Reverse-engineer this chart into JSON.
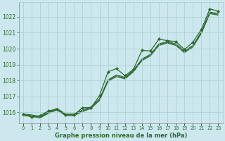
{
  "title": "Graphe pression niveau de la mer (hPa)",
  "x_labels": [
    "0",
    "1",
    "2",
    "3",
    "4",
    "5",
    "6",
    "7",
    "8",
    "9",
    "10",
    "11",
    "12",
    "13",
    "14",
    "15",
    "16",
    "17",
    "18",
    "19",
    "20",
    "21",
    "22",
    "23"
  ],
  "xlim": [
    -0.5,
    23.5
  ],
  "ylim": [
    1015.3,
    1022.9
  ],
  "yticks": [
    1016,
    1017,
    1018,
    1019,
    1020,
    1021,
    1022
  ],
  "bg_color": "#cce8ee",
  "grid_color": "#aacccc",
  "line_color": "#2d6a2d",
  "title_color": "#2d6a2d",
  "band_line1": [
    1015.9,
    1015.85,
    1015.75,
    1016.05,
    1016.25,
    1015.9,
    1015.9,
    1016.15,
    1016.35,
    1016.85,
    1018.05,
    1018.35,
    1018.2,
    1018.65,
    1019.35,
    1019.65,
    1020.3,
    1020.45,
    1020.3,
    1019.85,
    1020.2,
    1021.05,
    1022.3,
    1022.2
  ],
  "band_line2": [
    1015.85,
    1015.8,
    1015.7,
    1016.0,
    1016.2,
    1015.85,
    1015.85,
    1016.1,
    1016.3,
    1016.8,
    1018.0,
    1018.3,
    1018.15,
    1018.6,
    1019.3,
    1019.6,
    1020.25,
    1020.4,
    1020.25,
    1019.8,
    1020.15,
    1021.0,
    1022.25,
    1022.15
  ],
  "band_line3": [
    1015.8,
    1015.75,
    1015.65,
    1015.95,
    1016.15,
    1015.8,
    1015.8,
    1016.05,
    1016.25,
    1016.75,
    1017.95,
    1018.25,
    1018.1,
    1018.55,
    1019.25,
    1019.55,
    1020.2,
    1020.35,
    1020.2,
    1019.75,
    1020.1,
    1020.95,
    1022.2,
    1022.1
  ],
  "marker_line": [
    1015.9,
    1015.7,
    1015.8,
    1016.1,
    1016.2,
    1015.85,
    1015.85,
    1016.3,
    1016.3,
    1017.05,
    1018.55,
    1018.75,
    1018.3,
    1018.7,
    1019.9,
    1019.85,
    1020.6,
    1020.5,
    1020.45,
    1019.95,
    1020.4,
    1021.2,
    1022.5,
    1022.35
  ]
}
